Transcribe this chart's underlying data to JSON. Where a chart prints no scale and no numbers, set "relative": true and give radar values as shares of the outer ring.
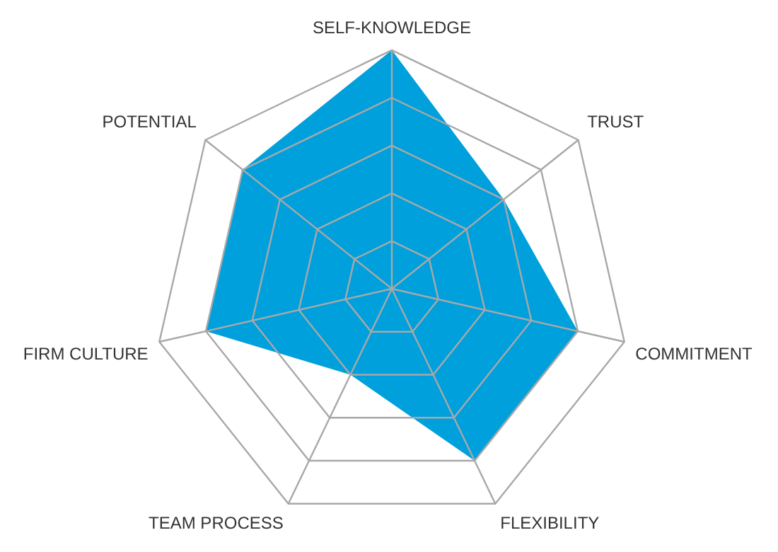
{
  "chart_data": {
    "type": "radar",
    "relative": true,
    "categories": [
      "SELF-KNOWLEDGE",
      "TRUST",
      "COMMITMENT",
      "FLEXIBILITY",
      "TEAM PROCESS",
      "FIRM CULTURE",
      "POTENTIAL"
    ],
    "series": [
      {
        "color": "#00a0dc",
        "values": [
          1,
          0.6,
          0.8,
          0.8,
          0.4,
          0.8,
          0.8
        ]
      }
    ],
    "grid": true,
    "legend": false,
    "marker": "none"
  }
}
